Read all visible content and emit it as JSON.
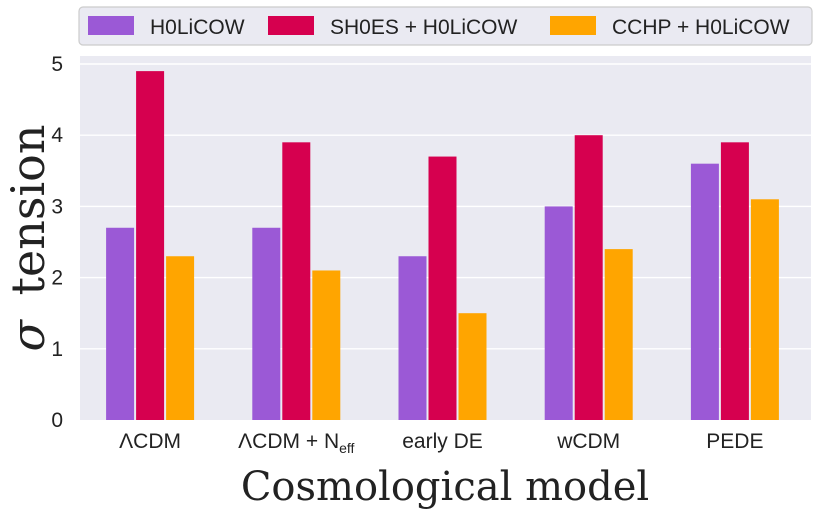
{
  "chart_data": {
    "type": "bar",
    "title": "",
    "xlabel": "Cosmological model",
    "ylabel_symbol": "σ",
    "ylabel_text": "tension",
    "ylim": [
      0,
      5
    ],
    "yticks": [
      "0",
      "1",
      "2",
      "3",
      "4",
      "5"
    ],
    "grid": true,
    "legend_position": "top",
    "categories": [
      {
        "main": "ΛCDM",
        "sub": ""
      },
      {
        "main": "ΛCDM + N",
        "sub": "eff"
      },
      {
        "main": "early DE",
        "sub": ""
      },
      {
        "main": "wCDM",
        "sub": ""
      },
      {
        "main": "PEDE",
        "sub": ""
      }
    ],
    "series": [
      {
        "name": "H0LiCOW",
        "color": "#9b59d6",
        "values": [
          2.7,
          2.7,
          2.3,
          3.0,
          3.6
        ]
      },
      {
        "name": "SH0ES + H0LiCOW",
        "color": "#d6004f",
        "values": [
          4.9,
          3.9,
          3.7,
          4.0,
          3.9
        ]
      },
      {
        "name": "CCHP + H0LiCOW",
        "color": "#ffa500",
        "values": [
          2.3,
          2.1,
          1.5,
          2.4,
          3.1
        ]
      }
    ]
  },
  "style": {
    "plot_background": "#eaeaf2",
    "grid_color": "#ffffff",
    "text_color": "#222222"
  }
}
